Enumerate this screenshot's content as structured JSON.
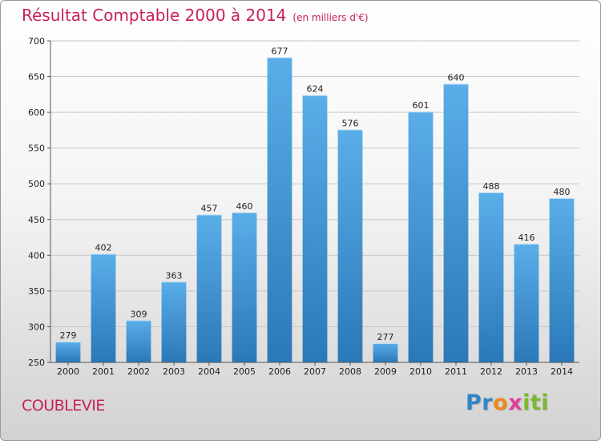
{
  "header": {
    "title": "Résultat Comptable 2000 à 2014",
    "subtitle": "(en milliers d'€)"
  },
  "footer": {
    "commune": "COUBLEVIE",
    "logo_letters": [
      {
        "char": "P",
        "color": "#2f86c8"
      },
      {
        "char": "r",
        "color": "#2f86c8"
      },
      {
        "char": "o",
        "color": "#e98a1e"
      },
      {
        "char": "x",
        "color": "#e0409a"
      },
      {
        "char": "i",
        "color": "#7cb82f"
      },
      {
        "char": "t",
        "color": "#7cb82f"
      },
      {
        "char": "i",
        "color": "#7cb82f"
      }
    ]
  },
  "colors": {
    "bar_light": "#5aaee8",
    "bar_dark": "#2a78b8",
    "grid": "#c8c8c8",
    "axis": "#555555"
  },
  "chart_data": {
    "type": "bar",
    "title": "Résultat Comptable 2000 à 2014",
    "subtitle": "(en milliers d'€)",
    "xlabel": "",
    "ylabel": "",
    "categories": [
      "2000",
      "2001",
      "2002",
      "2003",
      "2004",
      "2005",
      "2006",
      "2007",
      "2008",
      "2009",
      "2010",
      "2011",
      "2012",
      "2013",
      "2014"
    ],
    "values": [
      279,
      402,
      309,
      363,
      457,
      460,
      677,
      624,
      576,
      277,
      601,
      640,
      488,
      416,
      480
    ],
    "ylim": [
      250,
      700
    ],
    "yticks": [
      250,
      300,
      350,
      400,
      450,
      500,
      550,
      600,
      650,
      700
    ],
    "grid": true
  }
}
